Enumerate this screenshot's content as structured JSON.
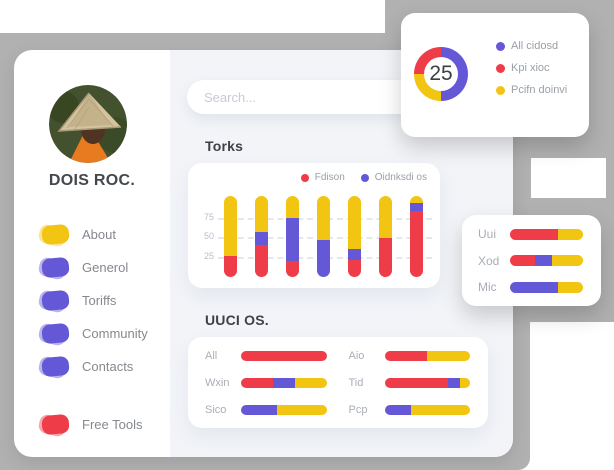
{
  "colors": {
    "red": "#ee3d49",
    "yellow": "#f2c513",
    "purple": "#6558d6",
    "gray_backdrop": "#b1b1b1",
    "content_bg": "#f2f4f8"
  },
  "sidebar": {
    "profile_name": "DOIS ROC.",
    "items": [
      {
        "label": "About",
        "color": "yellow"
      },
      {
        "label": "Generol",
        "color": "purple"
      },
      {
        "label": "Toriffs",
        "color": "purple"
      },
      {
        "label": "Community",
        "color": "purple"
      },
      {
        "label": "Contacts",
        "color": "purple"
      }
    ],
    "footer_item": {
      "label": "Free Tools",
      "color": "red"
    }
  },
  "search": {
    "placeholder": "Search..."
  },
  "donut_card": {
    "center_value": "25",
    "legend": [
      {
        "label": "All cidosd",
        "color": "purple"
      },
      {
        "label": "Kpi xioc",
        "color": "red"
      },
      {
        "label": "Pcifn doinvi",
        "color": "yellow"
      }
    ],
    "draw_order": [
      {
        "color": "purple",
        "value": 50
      },
      {
        "color": "yellow",
        "value": 25
      },
      {
        "color": "red",
        "value": 25
      }
    ]
  },
  "torks": {
    "title": "Torks",
    "legend": [
      {
        "label": "Fdison",
        "color": "red"
      },
      {
        "label": "Oidnksdi os",
        "color": "purple"
      }
    ],
    "y_ticks": [
      "75",
      "50",
      "25"
    ],
    "bars": [
      {
        "segments": [
          {
            "color": "red",
            "value": 26
          },
          {
            "color": "yellow",
            "value": 74
          }
        ]
      },
      {
        "segments": [
          {
            "color": "red",
            "value": 39
          },
          {
            "color": "purple",
            "value": 17
          },
          {
            "color": "yellow",
            "value": 44
          }
        ]
      },
      {
        "segments": [
          {
            "color": "red",
            "value": 20
          },
          {
            "color": "purple",
            "value": 53
          },
          {
            "color": "yellow",
            "value": 27
          }
        ]
      },
      {
        "segments": [
          {
            "color": "purple",
            "value": 46
          },
          {
            "color": "yellow",
            "value": 54
          }
        ]
      },
      {
        "segments": [
          {
            "color": "red",
            "value": 21
          },
          {
            "color": "purple",
            "value": 14
          },
          {
            "color": "yellow",
            "value": 65
          }
        ]
      },
      {
        "segments": [
          {
            "color": "red",
            "value": 48
          },
          {
            "color": "yellow",
            "value": 52
          }
        ]
      },
      {
        "segments": [
          {
            "color": "red",
            "value": 81
          },
          {
            "color": "purple",
            "value": 10
          },
          {
            "color": "yellow",
            "value": 9
          }
        ]
      }
    ]
  },
  "uuci": {
    "title": "UUCI OS.",
    "left_rows": [
      {
        "label": "All",
        "segments": [
          {
            "color": "red",
            "value": 100
          }
        ]
      },
      {
        "label": "Wxin",
        "segments": [
          {
            "color": "red",
            "value": 38
          },
          {
            "color": "purple",
            "value": 25
          },
          {
            "color": "yellow",
            "value": 37
          }
        ]
      },
      {
        "label": "Sico",
        "segments": [
          {
            "color": "purple",
            "value": 42
          },
          {
            "color": "yellow",
            "value": 58
          }
        ]
      }
    ],
    "right_rows": [
      {
        "label": "Aio",
        "segments": [
          {
            "color": "red",
            "value": 50
          },
          {
            "color": "yellow",
            "value": 50
          }
        ]
      },
      {
        "label": "Tid",
        "segments": [
          {
            "color": "red",
            "value": 74
          },
          {
            "color": "purple",
            "value": 14
          },
          {
            "color": "yellow",
            "value": 12
          }
        ]
      },
      {
        "label": "Pcp",
        "segments": [
          {
            "color": "purple",
            "value": 31
          },
          {
            "color": "yellow",
            "value": 69
          }
        ]
      }
    ]
  },
  "mini_card": {
    "rows": [
      {
        "label": "Uui",
        "segments": [
          {
            "color": "red",
            "value": 66
          },
          {
            "color": "yellow",
            "value": 34
          }
        ]
      },
      {
        "label": "Xod",
        "segments": [
          {
            "color": "red",
            "value": 34
          },
          {
            "color": "purple",
            "value": 23
          },
          {
            "color": "yellow",
            "value": 43
          }
        ]
      },
      {
        "label": "Mic",
        "segments": [
          {
            "color": "purple",
            "value": 66
          },
          {
            "color": "yellow",
            "value": 34
          }
        ]
      }
    ]
  },
  "chart_data": [
    {
      "type": "pie",
      "title": "",
      "center_label": "25",
      "labels": [
        "All cidosd",
        "Kpi xioc",
        "Pcifn doinvi"
      ],
      "values": [
        50,
        25,
        25
      ],
      "colors": [
        "#6558d6",
        "#ee3d49",
        "#f2c513"
      ],
      "legend_position": "right"
    },
    {
      "type": "bar",
      "title": "Torks",
      "categories": [
        "1",
        "2",
        "3",
        "4",
        "5",
        "6",
        "7"
      ],
      "series": [
        {
          "name": "Fdison (red)",
          "values": [
            26,
            39,
            20,
            0,
            21,
            48,
            81
          ]
        },
        {
          "name": "Oidnksdi os (purple)",
          "values": [
            0,
            17,
            53,
            46,
            14,
            0,
            10
          ]
        },
        {
          "name": "yellow remainder",
          "values": [
            74,
            44,
            27,
            54,
            65,
            52,
            9
          ]
        }
      ],
      "stacked": true,
      "ylim": [
        0,
        100
      ],
      "y_ticks": [
        25,
        50,
        75
      ],
      "grid": "dashed"
    },
    {
      "type": "bar",
      "title": "UUCI OS.",
      "orientation": "horizontal",
      "categories": [
        "All",
        "Wxin",
        "Sico",
        "Aio",
        "Tid",
        "Pcp"
      ],
      "series": [
        {
          "name": "red",
          "values": [
            100,
            38,
            0,
            50,
            74,
            0
          ]
        },
        {
          "name": "purple",
          "values": [
            0,
            25,
            42,
            0,
            14,
            31
          ]
        },
        {
          "name": "yellow",
          "values": [
            0,
            37,
            58,
            50,
            12,
            69
          ]
        }
      ],
      "stacked": true
    },
    {
      "type": "bar",
      "title": "",
      "orientation": "horizontal",
      "categories": [
        "Uui",
        "Xod",
        "Mic"
      ],
      "series": [
        {
          "name": "red",
          "values": [
            66,
            34,
            0
          ]
        },
        {
          "name": "purple",
          "values": [
            0,
            23,
            66
          ]
        },
        {
          "name": "yellow",
          "values": [
            34,
            43,
            34
          ]
        }
      ],
      "stacked": true
    }
  ]
}
